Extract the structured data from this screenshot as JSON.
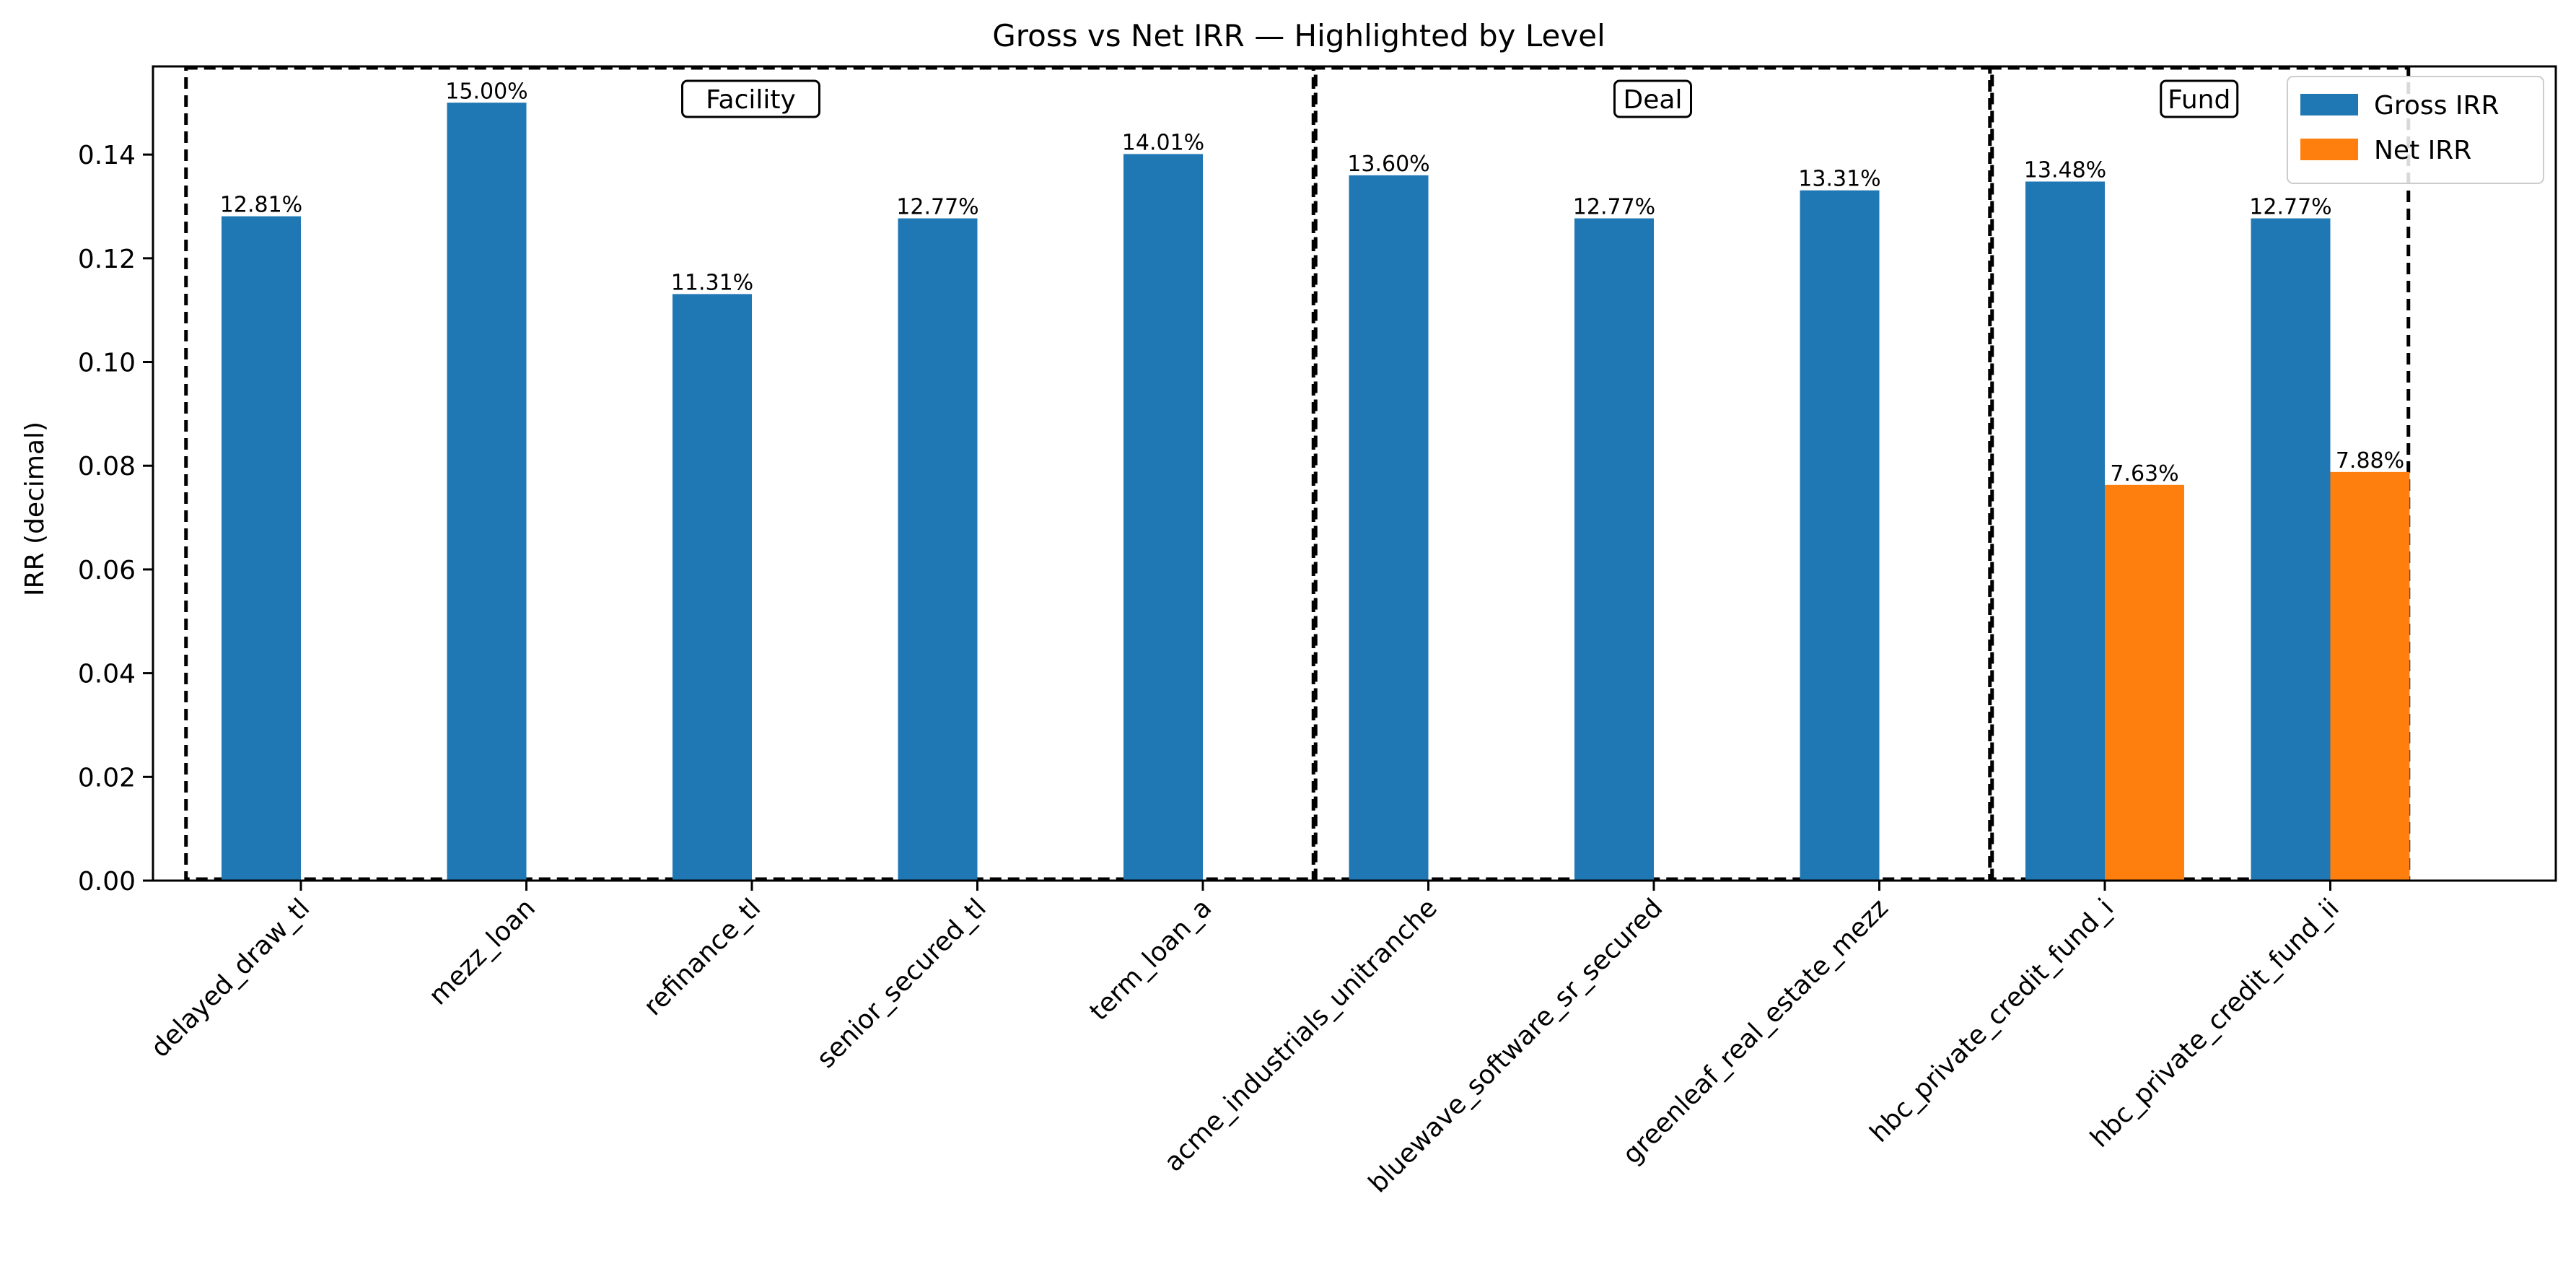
{
  "chart_data": {
    "type": "bar",
    "title": "Gross vs Net IRR — Highlighted by Level",
    "xlabel": "",
    "ylabel": "IRR (decimal)",
    "ylim": [
      0,
      0.157
    ],
    "yticks": [
      "0.00",
      "0.02",
      "0.04",
      "0.06",
      "0.08",
      "0.10",
      "0.12",
      "0.14"
    ],
    "grid": false,
    "legend_position": "top-right",
    "categories": [
      "delayed_draw_tl",
      "mezz_loan",
      "refinance_tl",
      "senior_secured_tl",
      "term_loan_a",
      "acme_industrials_unitranche",
      "bluewave_software_sr_secured",
      "greenleaf_real_estate_mezz",
      "hbc_private_credit_fund_i",
      "hbc_private_credit_fund_ii"
    ],
    "series": [
      {
        "name": "Gross IRR",
        "color": "#1f77b4",
        "values": [
          0.1281,
          0.15,
          0.1131,
          0.1277,
          0.1401,
          0.136,
          0.1277,
          0.1331,
          0.1348,
          0.1277
        ],
        "labels": [
          "12.81%",
          "15.00%",
          "11.31%",
          "12.77%",
          "14.01%",
          "13.60%",
          "12.77%",
          "13.31%",
          "13.48%",
          "12.77%"
        ]
      },
      {
        "name": "Net IRR",
        "color": "#ff7f0e",
        "values": [
          null,
          null,
          null,
          null,
          null,
          null,
          null,
          null,
          0.0763,
          0.0788
        ],
        "labels": [
          null,
          null,
          null,
          null,
          null,
          null,
          null,
          null,
          "7.63%",
          "7.88%"
        ]
      }
    ],
    "groups": [
      {
        "label": "Facility",
        "start": 0,
        "end": 4
      },
      {
        "label": "Deal",
        "start": 5,
        "end": 7
      },
      {
        "label": "Fund",
        "start": 8,
        "end": 9
      }
    ]
  }
}
